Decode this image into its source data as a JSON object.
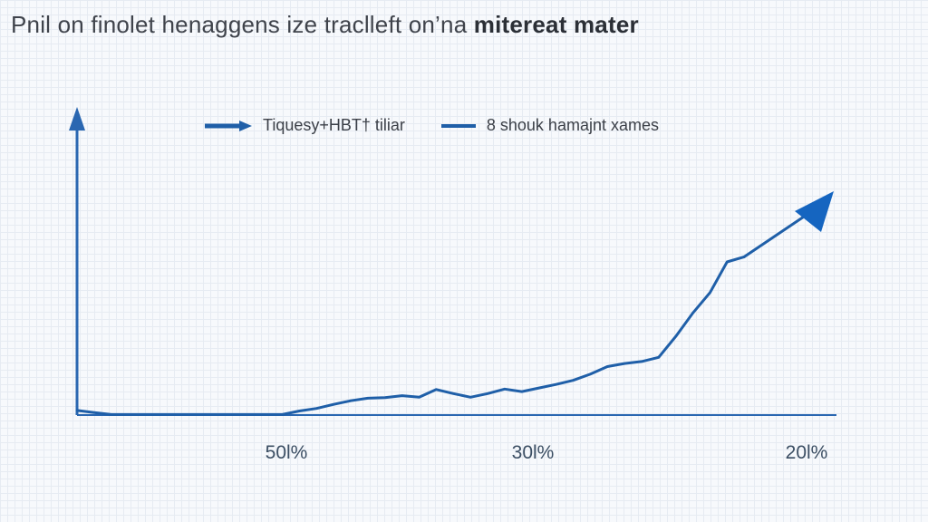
{
  "chart_data": {
    "type": "line",
    "title_light": "Pnil on finolet henaggens ize traclleft",
    "title_mid": "on’na",
    "title_bold": "mitereat mater",
    "xlabel": "",
    "ylabel": "",
    "x_tick_labels": [
      "50l%",
      "30l%",
      "20l%"
    ],
    "legend": [
      {
        "label": "Tiquesy+HBT† tiliar",
        "marker": "arrow-line"
      },
      {
        "label": "8 shouk hamajnt xames",
        "marker": "line"
      }
    ],
    "grid": true,
    "legend_position": "top",
    "series": [
      {
        "x": [
          0,
          1,
          2,
          3,
          4,
          5,
          6,
          7,
          8,
          9,
          10,
          11,
          12,
          13,
          14,
          15,
          16,
          17,
          18,
          19,
          20,
          21,
          22,
          23,
          24,
          25,
          26,
          27,
          28,
          29,
          30,
          31,
          32,
          33,
          34,
          35,
          36,
          37,
          38,
          39
        ],
        "y": [
          0.9,
          0.5,
          0.1,
          0.1,
          0.1,
          0.1,
          0.1,
          0.1,
          0.1,
          0.1,
          0.1,
          0.1,
          0.1,
          0.8,
          1.3,
          2.1,
          2.8,
          3.3,
          3.4,
          3.8,
          3.5,
          5.0,
          4.2,
          3.5,
          4.2,
          5.1,
          4.6,
          5.3,
          6.0,
          6.8,
          8.0,
          9.5,
          10.1,
          10.5,
          11.3,
          15.4,
          20.0,
          24.0,
          30.0,
          31.0
        ],
        "color": "#1f5fa8",
        "end_marker": "arrow"
      }
    ],
    "xlim": [
      0,
      49
    ],
    "ylim": [
      0,
      60
    ],
    "colors": {
      "line": "#1f5fa8",
      "arrow": "#1565c0",
      "axis": "#2a67b1",
      "tick_text": "#3b4e63",
      "title_text": "#3f434b",
      "grid": "#e6ebf2"
    }
  }
}
